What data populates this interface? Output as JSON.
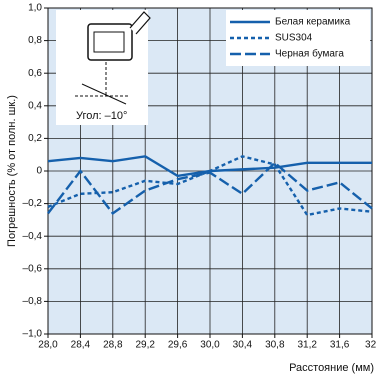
{
  "chart_data": {
    "type": "line",
    "y_label": "Погрешность (% от полн. шк.)",
    "x_label": "Расстояние (мм)",
    "annotation": "Угол: –10°",
    "xlim": [
      28.0,
      32.0
    ],
    "ylim": [
      -1.0,
      1.0
    ],
    "xticks": [
      {
        "value": 28.0,
        "label": "28,0"
      },
      {
        "value": 28.4,
        "label": "28,4"
      },
      {
        "value": 28.8,
        "label": "28,8"
      },
      {
        "value": 29.2,
        "label": "29,2"
      },
      {
        "value": 29.6,
        "label": "29,6"
      },
      {
        "value": 30.0,
        "label": "30,0"
      },
      {
        "value": 30.4,
        "label": "30,4"
      },
      {
        "value": 30.8,
        "label": "30,8"
      },
      {
        "value": 31.2,
        "label": "31,2"
      },
      {
        "value": 31.6,
        "label": "31,6"
      },
      {
        "value": 32.0,
        "label": "32,"
      }
    ],
    "yticks": [
      {
        "value": -1.0,
        "label": "–1,0"
      },
      {
        "value": -0.8,
        "label": "–0,8"
      },
      {
        "value": -0.6,
        "label": "–0,6"
      },
      {
        "value": -0.4,
        "label": "–0,4"
      },
      {
        "value": -0.2,
        "label": "–0,2"
      },
      0,
      {
        "value": 0.2,
        "label": "0,2"
      },
      {
        "value": 0.4,
        "label": "0,4"
      },
      {
        "value": 0.6,
        "label": "0,6"
      },
      {
        "value": 0.8,
        "label": "0,8"
      },
      {
        "value": 1.0,
        "label": "1,0"
      }
    ],
    "grid": true,
    "legend": "upper right",
    "x": [
      28.0,
      28.4,
      28.8,
      29.2,
      29.6,
      30.0,
      30.4,
      30.8,
      31.2,
      31.6,
      32.0
    ],
    "series": [
      {
        "name": "Белая керамика",
        "color": "#1560ac",
        "line_style": "solid",
        "values": [
          0.06,
          0.08,
          0.06,
          0.09,
          -0.03,
          0.0,
          0.01,
          0.02,
          0.05,
          0.05,
          0.05
        ]
      },
      {
        "name": "SUS304",
        "color": "#1560ac",
        "line_style": "short-dash",
        "values": [
          -0.22,
          -0.14,
          -0.13,
          -0.06,
          -0.08,
          0.0,
          0.09,
          0.04,
          -0.27,
          -0.23,
          -0.25
        ]
      },
      {
        "name": "Черная бумага",
        "color": "#1560ac",
        "line_style": "long-dash",
        "values": [
          -0.26,
          0.0,
          -0.26,
          -0.12,
          -0.05,
          -0.01,
          -0.14,
          0.05,
          -0.12,
          -0.07,
          -0.23
        ]
      }
    ]
  }
}
